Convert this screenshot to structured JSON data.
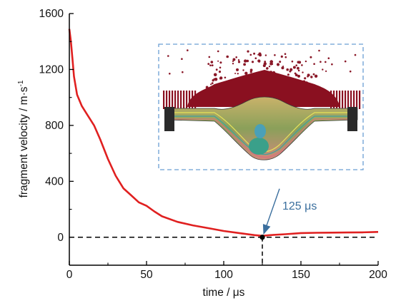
{
  "chart_data": {
    "type": "line",
    "xlabel": "time / μs",
    "ylabel": "fragment velocity / m·s",
    "ylabel_superscript": "-1",
    "xlim": [
      0,
      200
    ],
    "ylim": [
      -200,
      1600
    ],
    "x_ticks": [
      0,
      50,
      100,
      150,
      200
    ],
    "y_ticks": [
      0,
      400,
      800,
      1200,
      1600
    ],
    "grid": false,
    "series": [
      {
        "color": "#e02020",
        "x": [
          0,
          1,
          2,
          3,
          5,
          8,
          12,
          16,
          20,
          25,
          30,
          35,
          40,
          45,
          50,
          55,
          60,
          70,
          80,
          90,
          100,
          110,
          120,
          125,
          130,
          140,
          150,
          160,
          170,
          180,
          190,
          200
        ],
        "y": [
          1490,
          1400,
          1280,
          1150,
          1020,
          940,
          870,
          800,
          700,
          560,
          440,
          350,
          300,
          250,
          225,
          185,
          150,
          110,
          85,
          65,
          45,
          30,
          15,
          10,
          15,
          22,
          30,
          32,
          33,
          34,
          35,
          38
        ]
      }
    ],
    "reference_line": {
      "y": 0,
      "style": "dashed",
      "color": "#000000"
    },
    "marker": {
      "x": 125,
      "y": 0,
      "color": "#000000"
    },
    "vertical_drop": {
      "x": 125,
      "style": "dashed"
    },
    "annotation": {
      "text": "125 μs",
      "color": "#3b6f9e",
      "points_to": {
        "x": 125,
        "y": 0
      }
    },
    "inset": {
      "description_icon": "simulation-snapshot",
      "border_color": "#6a9fd4",
      "border_style": "dashed"
    }
  }
}
